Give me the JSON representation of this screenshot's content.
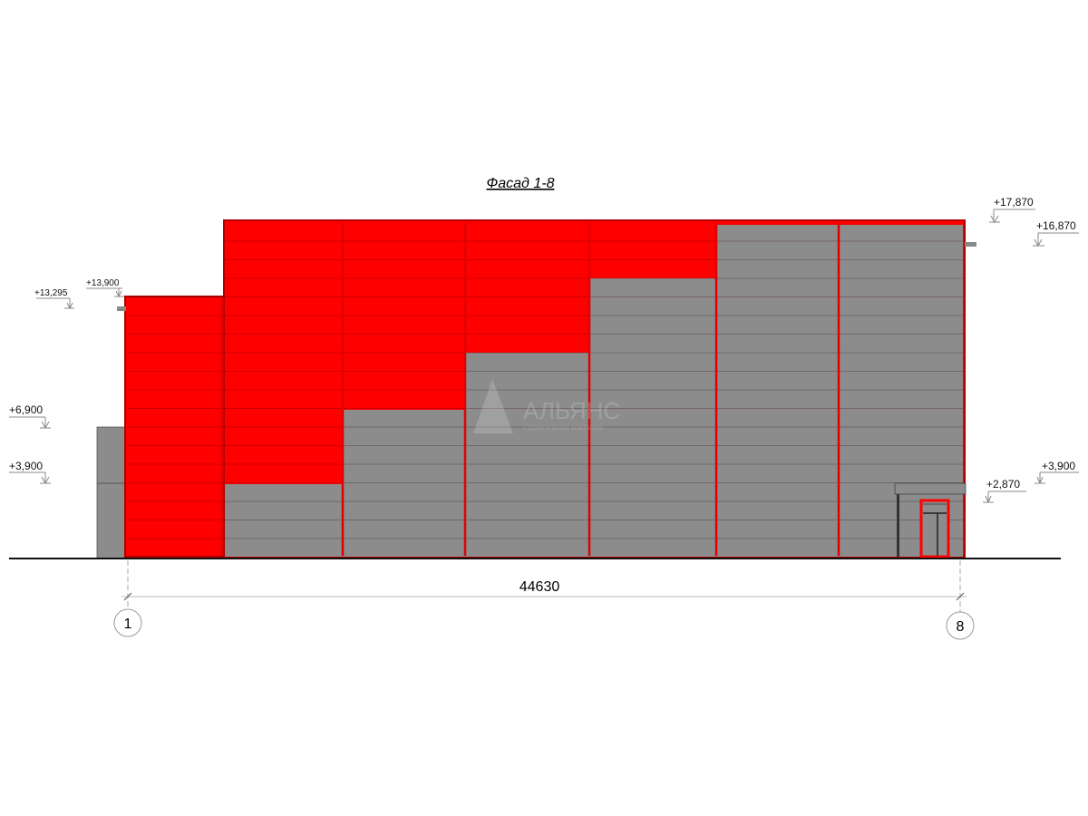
{
  "title": "Фасад 1-8",
  "dimension": "44630",
  "axes": [
    "1",
    "8"
  ],
  "levels": {
    "l17870": "+17,870",
    "l16870": "+16,870",
    "l13900": "+13,900",
    "l13295": "+13,295",
    "l6900": "+6,900",
    "l3900_left": "+3,900",
    "l3900_right": "+3,900",
    "l2870": "+2,870"
  },
  "watermark": {
    "name": "АЛЬЯНС",
    "subtitle": "строительная компания"
  },
  "colors": {
    "accent_panel": "#ff0000",
    "gray_panel": "#8c8c8c",
    "outline": "#c00000"
  }
}
